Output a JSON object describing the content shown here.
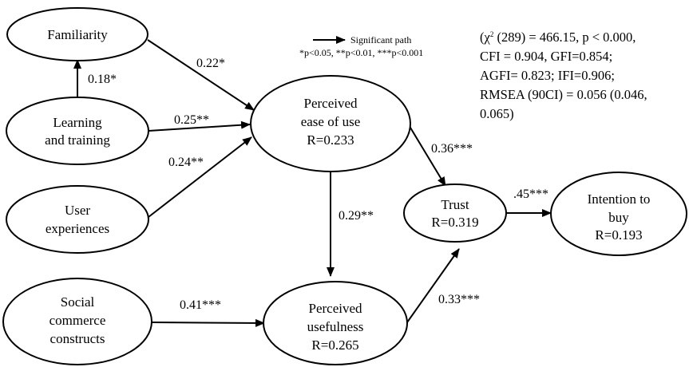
{
  "nodes": {
    "familiarity": {
      "lines": [
        "Familiarity"
      ]
    },
    "learning": {
      "lines": [
        "Learning",
        "and training"
      ]
    },
    "user_exp": {
      "lines": [
        "User",
        "experiences"
      ]
    },
    "social": {
      "lines": [
        "Social",
        "commerce",
        "constructs"
      ]
    },
    "peou": {
      "lines": [
        "Perceived",
        "ease of use",
        "R=0.233"
      ]
    },
    "pu": {
      "lines": [
        "Perceived",
        "usefulness",
        "R=0.265"
      ]
    },
    "trust": {
      "lines": [
        "Trust",
        "R=0.319"
      ]
    },
    "intention": {
      "lines": [
        "Intention to",
        "buy",
        "R=0.193"
      ]
    }
  },
  "paths": {
    "learning_familiarity": "0.18*",
    "familiarity_peou": "0.22*",
    "learning_peou": "0.25**",
    "user_peou": "0.24**",
    "peou_trust": "0.36***",
    "peou_pu": "0.29**",
    "social_pu": "0.41***",
    "pu_trust": "0.33***",
    "trust_intention": ".45***"
  },
  "legend": {
    "label": "Significant path",
    "note": "*p<0.05, **p<0.01, ***p<0.001"
  },
  "fit": {
    "chi_open": "(χ",
    "chi_sup": "2",
    "chi_rest": " (289) = 466.15, p < 0.000,",
    "line2": "CFI = 0.904, GFI=0.854;",
    "line3": "AGFI= 0.823; IFI=0.906;",
    "line4": "RMSEA (90CI) = 0.056 (0.046,",
    "line5": "0.065)"
  }
}
